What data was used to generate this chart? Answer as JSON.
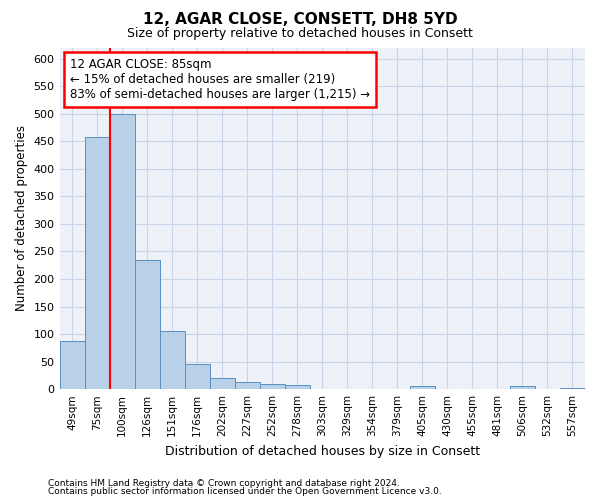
{
  "title1": "12, AGAR CLOSE, CONSETT, DH8 5YD",
  "title2": "Size of property relative to detached houses in Consett",
  "xlabel": "Distribution of detached houses by size in Consett",
  "ylabel": "Number of detached properties",
  "categories": [
    "49sqm",
    "75sqm",
    "100sqm",
    "126sqm",
    "151sqm",
    "176sqm",
    "202sqm",
    "227sqm",
    "252sqm",
    "278sqm",
    "303sqm",
    "329sqm",
    "354sqm",
    "379sqm",
    "405sqm",
    "430sqm",
    "455sqm",
    "481sqm",
    "506sqm",
    "532sqm",
    "557sqm"
  ],
  "values": [
    88,
    458,
    500,
    235,
    105,
    46,
    20,
    13,
    9,
    8,
    0,
    0,
    0,
    0,
    5,
    0,
    0,
    0,
    5,
    0,
    3
  ],
  "bar_color": "#b8d0e8",
  "bar_edge_color": "#5a8fc0",
  "red_line_x": 1.5,
  "annotation_line1": "12 AGAR CLOSE: 85sqm",
  "annotation_line2": "← 15% of detached houses are smaller (219)",
  "annotation_line3": "83% of semi-detached houses are larger (1,215) →",
  "annotation_box_color": "white",
  "annotation_box_edge": "red",
  "ylim_max": 620,
  "yticks": [
    0,
    50,
    100,
    150,
    200,
    250,
    300,
    350,
    400,
    450,
    500,
    550,
    600
  ],
  "footer1": "Contains HM Land Registry data © Crown copyright and database right 2024.",
  "footer2": "Contains public sector information licensed under the Open Government Licence v3.0.",
  "grid_color": "#c8d4e8",
  "bg_color": "#eef2f8",
  "title_fontsize": 11,
  "subtitle_fontsize": 9
}
